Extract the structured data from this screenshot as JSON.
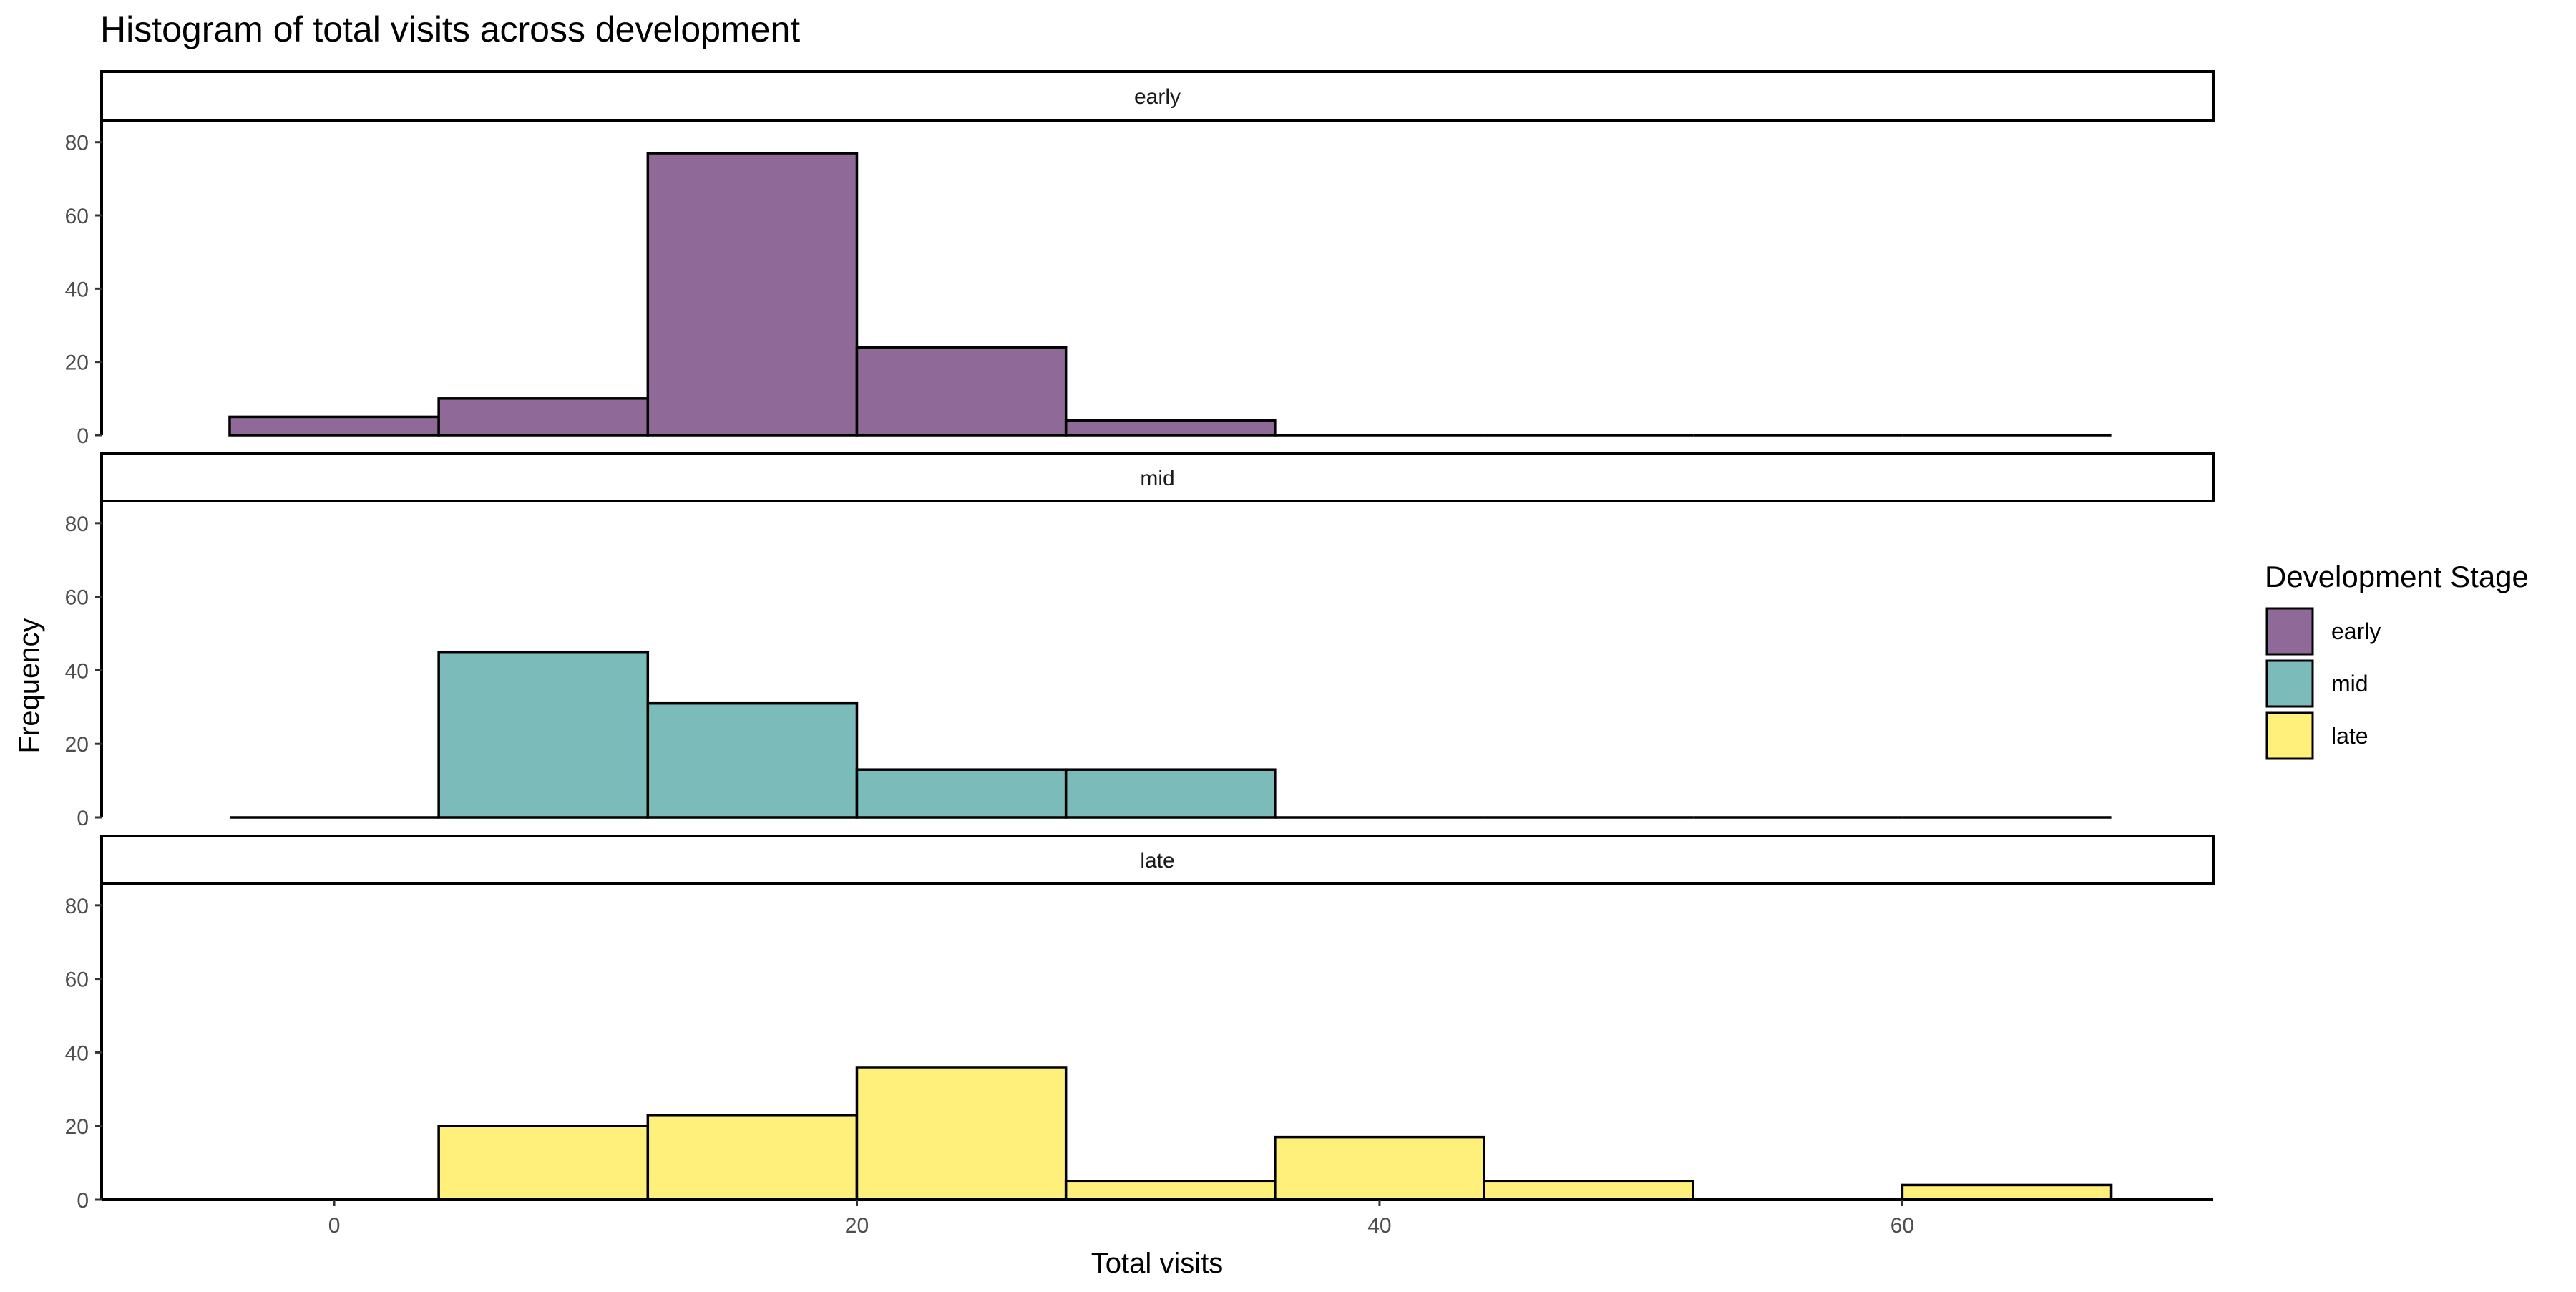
{
  "chart_data": {
    "type": "bar",
    "subtype": "histogram",
    "title": "Histogram of total visits across development",
    "xlabel": "Total visits",
    "ylabel": "Frequency",
    "xlim": [
      -8.9,
      71.9
    ],
    "ylim": [
      0,
      86
    ],
    "x_ticks": [
      0,
      20,
      40,
      60
    ],
    "y_ticks": [
      0,
      20,
      40,
      60,
      80
    ],
    "grid": false,
    "legend": {
      "title": "Development Stage",
      "placement": "right"
    },
    "bins": [
      [
        -4,
        4
      ],
      [
        4,
        12
      ],
      [
        12,
        20
      ],
      [
        20,
        28
      ],
      [
        28,
        36
      ],
      [
        36,
        44
      ],
      [
        44,
        52
      ],
      [
        52,
        60
      ],
      [
        60,
        68
      ]
    ],
    "facets": [
      "early",
      "mid",
      "late"
    ],
    "series": [
      {
        "name": "early",
        "color": "#8F6A99",
        "values": [
          5,
          10,
          77,
          24,
          4,
          0,
          0,
          0,
          0
        ]
      },
      {
        "name": "mid",
        "color": "#7BBBB9",
        "values": [
          0,
          45,
          31,
          13,
          13,
          0,
          0,
          0,
          0
        ]
      },
      {
        "name": "late",
        "color": "#FEF07A",
        "values": [
          0,
          20,
          23,
          36,
          5,
          17,
          5,
          0,
          4
        ]
      }
    ]
  }
}
